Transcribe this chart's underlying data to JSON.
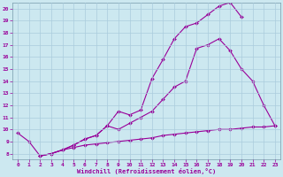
{
  "xlabel": "Windchill (Refroidissement éolien,°C)",
  "bg_color": "#cce8f0",
  "line_color": "#990099",
  "grid_color": "#aaccdd",
  "xlim": [
    -0.5,
    23.5
  ],
  "ylim": [
    7.5,
    20.5
  ],
  "xticks": [
    0,
    1,
    2,
    3,
    4,
    5,
    6,
    7,
    8,
    9,
    10,
    11,
    12,
    13,
    14,
    15,
    16,
    17,
    18,
    19,
    20,
    21,
    22,
    23
  ],
  "yticks": [
    8,
    9,
    10,
    11,
    12,
    13,
    14,
    15,
    16,
    17,
    18,
    19,
    20
  ],
  "line1_x": [
    0,
    1,
    2,
    3,
    4,
    5,
    6,
    7,
    8,
    9,
    10,
    11,
    12,
    13,
    14,
    15,
    16,
    17,
    18,
    19,
    20
  ],
  "line1_y": [
    9.7,
    9.0,
    7.8,
    8.0,
    8.3,
    8.7,
    9.2,
    9.5,
    10.3,
    11.5,
    11.2,
    11.6,
    14.2,
    15.8,
    17.5,
    18.5,
    18.8,
    19.5,
    20.2,
    20.5,
    19.3
  ],
  "line2_x": [
    2,
    3,
    4,
    5,
    6,
    7,
    8,
    9,
    10,
    11,
    12,
    13,
    14,
    15,
    16,
    17,
    18,
    19,
    20,
    21,
    22,
    23
  ],
  "line2_y": [
    7.8,
    8.0,
    8.3,
    8.7,
    9.2,
    9.5,
    10.3,
    10.0,
    10.5,
    11.0,
    11.5,
    12.5,
    13.5,
    14.0,
    16.7,
    17.0,
    17.5,
    16.5,
    15.0,
    14.0,
    12.0,
    10.3
  ],
  "line3_x": [
    2,
    3,
    4,
    5,
    6,
    7,
    8,
    9,
    10,
    11,
    12,
    13,
    14,
    15,
    16,
    17,
    18,
    19,
    20,
    21,
    22,
    23
  ],
  "line3_y": [
    7.8,
    8.0,
    8.3,
    8.5,
    8.7,
    8.8,
    8.9,
    9.0,
    9.1,
    9.2,
    9.3,
    9.5,
    9.6,
    9.7,
    9.8,
    9.9,
    10.0,
    10.0,
    10.1,
    10.2,
    10.2,
    10.3
  ]
}
